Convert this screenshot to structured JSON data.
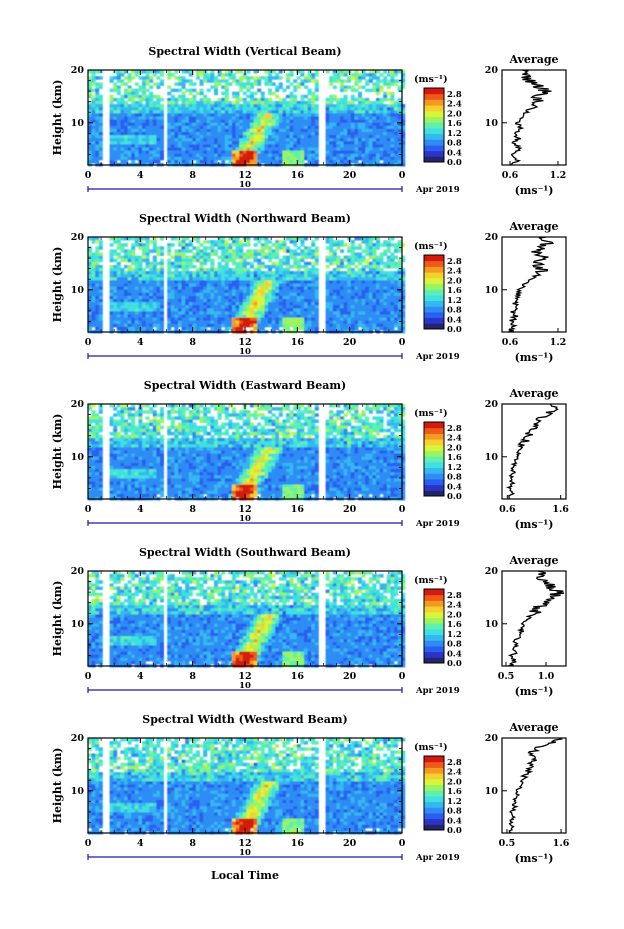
{
  "chart_data": [
    {
      "type": "heatmap",
      "title": "Spectral Width (Vertical Beam)",
      "ylabel": "Height (km)",
      "colorbar_unit": "(ms⁻¹)",
      "colorbar_ticks": [
        "2.8",
        "2.4",
        "2.0",
        "1.6",
        "1.2",
        "0.8",
        "0.4",
        "0.0"
      ],
      "x_ticks": [
        "0",
        "4",
        "8",
        "12",
        "16",
        "20",
        "0"
      ],
      "date_day": "10",
      "date_label": "Apr 2019",
      "profile": {
        "title": "Average",
        "xlabel": "(ms⁻¹)",
        "x_ticks": [
          "0.6",
          "1.2"
        ],
        "xlim": [
          0.5,
          1.3
        ],
        "heights": [
          2,
          3,
          4,
          5,
          6,
          7,
          8,
          9,
          10,
          11,
          12,
          13,
          14,
          15,
          16,
          17,
          18,
          19,
          20
        ],
        "values": [
          0.62,
          0.7,
          0.65,
          0.72,
          0.66,
          0.7,
          0.68,
          0.72,
          0.7,
          0.75,
          0.8,
          0.85,
          0.95,
          0.9,
          1.05,
          0.95,
          0.85,
          0.8,
          0.75
        ]
      }
    },
    {
      "type": "heatmap",
      "title": "Spectral Width (Northward Beam)",
      "ylabel": "Height (km)",
      "colorbar_unit": "(ms⁻¹)",
      "colorbar_ticks": [
        "2.8",
        "2.4",
        "2.0",
        "1.6",
        "1.2",
        "0.8",
        "0.4",
        "0.0"
      ],
      "x_ticks": [
        "0",
        "4",
        "8",
        "12",
        "16",
        "20",
        "0"
      ],
      "date_day": "10",
      "date_label": "Apr 2019",
      "profile": {
        "title": "Average",
        "xlabel": "(ms⁻¹)",
        "x_ticks": [
          "0.6",
          "1.2"
        ],
        "xlim": [
          0.5,
          1.3
        ],
        "heights": [
          2,
          3,
          4,
          5,
          6,
          7,
          8,
          9,
          10,
          11,
          12,
          13,
          14,
          15,
          16,
          17,
          18,
          19,
          20
        ],
        "values": [
          0.6,
          0.64,
          0.62,
          0.66,
          0.64,
          0.68,
          0.66,
          0.7,
          0.72,
          0.78,
          0.85,
          0.95,
          1.0,
          0.95,
          1.05,
          0.9,
          1.0,
          1.1,
          1.05
        ]
      }
    },
    {
      "type": "heatmap",
      "title": "Spectral Width (Eastward Beam)",
      "ylabel": "Height (km)",
      "colorbar_unit": "(ms⁻¹)",
      "colorbar_ticks": [
        "2.8",
        "2.4",
        "2.0",
        "1.6",
        "1.2",
        "0.8",
        "0.4",
        "0.0"
      ],
      "x_ticks": [
        "0",
        "4",
        "8",
        "12",
        "16",
        "20",
        "0"
      ],
      "date_day": "10",
      "date_label": "Apr 2019",
      "profile": {
        "title": "Average",
        "xlabel": "(ms⁻¹)",
        "x_ticks": [
          "0.6",
          "1.6"
        ],
        "xlim": [
          0.5,
          1.7
        ],
        "heights": [
          2,
          3,
          4,
          5,
          6,
          7,
          8,
          9,
          10,
          11,
          12,
          13,
          14,
          15,
          16,
          17,
          18,
          19,
          20
        ],
        "values": [
          0.62,
          0.68,
          0.64,
          0.7,
          0.66,
          0.72,
          0.7,
          0.74,
          0.78,
          0.82,
          0.85,
          0.95,
          1.0,
          1.05,
          1.15,
          1.2,
          1.35,
          1.5,
          1.4
        ]
      }
    },
    {
      "type": "heatmap",
      "title": "Spectral Width (Southward Beam)",
      "ylabel": "Height (km)",
      "colorbar_unit": "(ms⁻¹)",
      "colorbar_ticks": [
        "2.8",
        "2.4",
        "2.0",
        "1.6",
        "1.2",
        "0.8",
        "0.4",
        "0.0"
      ],
      "x_ticks": [
        "0",
        "4",
        "8",
        "12",
        "16",
        "20",
        "0"
      ],
      "date_day": "10",
      "date_label": "Apr 2019",
      "profile": {
        "title": "Average",
        "xlabel": "(ms⁻¹)",
        "x_ticks": [
          "0.5",
          "1.0"
        ],
        "xlim": [
          0.45,
          1.25
        ],
        "heights": [
          2,
          3,
          4,
          5,
          6,
          7,
          8,
          9,
          10,
          11,
          12,
          13,
          14,
          15,
          16,
          17,
          18,
          19,
          20
        ],
        "values": [
          0.55,
          0.6,
          0.58,
          0.62,
          0.6,
          0.64,
          0.66,
          0.7,
          0.72,
          0.78,
          0.85,
          0.9,
          1.0,
          1.1,
          1.15,
          1.05,
          1.0,
          0.95,
          0.9
        ]
      }
    },
    {
      "type": "heatmap",
      "title": "Spectral Width (Westward Beam)",
      "ylabel": "Height (km)",
      "colorbar_unit": "(ms⁻¹)",
      "colorbar_ticks": [
        "2.8",
        "2.4",
        "2.0",
        "1.6",
        "1.2",
        "0.8",
        "0.4",
        "0.0"
      ],
      "x_ticks": [
        "0",
        "4",
        "8",
        "12",
        "16",
        "20",
        "0"
      ],
      "date_day": "10",
      "date_label": "Apr 2019",
      "profile": {
        "title": "Average",
        "xlabel": "(ms⁻¹)",
        "x_ticks": [
          "0.5",
          "1.6"
        ],
        "xlim": [
          0.4,
          1.7
        ],
        "heights": [
          2,
          3,
          4,
          5,
          6,
          7,
          8,
          9,
          10,
          11,
          12,
          13,
          14,
          15,
          16,
          17,
          18,
          19,
          20
        ],
        "values": [
          0.55,
          0.6,
          0.58,
          0.64,
          0.6,
          0.66,
          0.65,
          0.7,
          0.72,
          0.78,
          0.82,
          0.88,
          0.95,
          1.0,
          1.05,
          1.0,
          1.1,
          1.4,
          1.55
        ]
      }
    }
  ],
  "x_axis_label": "Local Time",
  "colorbar_colors": [
    "#24246a",
    "#2b34c8",
    "#2a5ef0",
    "#2f8cf5",
    "#35b8f0",
    "#3fe0e0",
    "#5ff0b0",
    "#9af560",
    "#d8f53a",
    "#f5d030",
    "#f59a20",
    "#ef5a1a",
    "#d41a10"
  ]
}
